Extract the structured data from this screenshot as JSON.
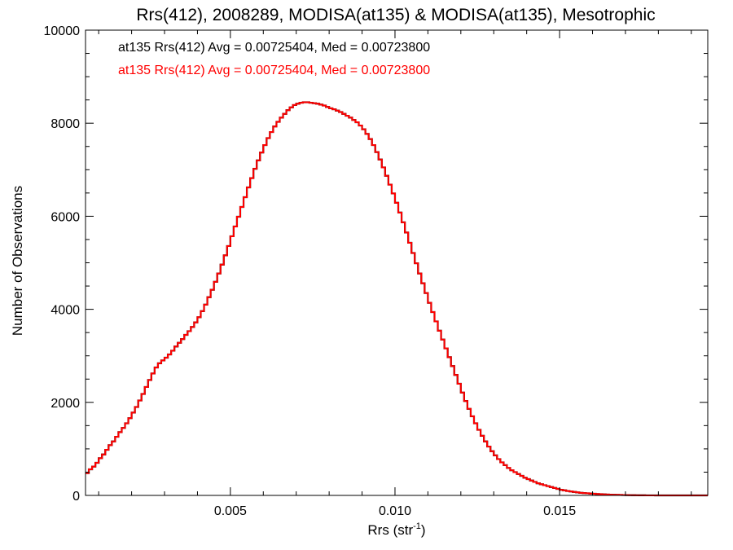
{
  "chart_data": {
    "type": "line",
    "title": "Rrs(412), 2008289, MODISA(at135) & MODISA(at135), Mesotrophic",
    "xlabel": "Rrs (str",
    "xlabel_sup": "-1",
    "xlabel_suffix": ")",
    "ylabel": "Number of Observations",
    "xlim": [
      0.0006,
      0.0195
    ],
    "ylim": [
      0,
      10000
    ],
    "grid": false,
    "x_ticks": [
      0.005,
      0.01,
      0.015
    ],
    "x_tick_labels": [
      "0.005",
      "0.010",
      "0.015"
    ],
    "y_ticks": [
      0,
      2000,
      4000,
      6000,
      8000,
      10000
    ],
    "y_tick_labels": [
      "0",
      "2000",
      "4000",
      "6000",
      "8000",
      "10000"
    ],
    "legend_position": "top-left",
    "bin_width": 0.0001,
    "x_start": 0.0006,
    "series": [
      {
        "name": "at135 Rrs(412) Avg = 0.00725404, Med = 0.00723800",
        "color": "#000000",
        "values": [
          480,
          560,
          620,
          700,
          800,
          880,
          980,
          1080,
          1160,
          1260,
          1360,
          1450,
          1550,
          1660,
          1780,
          1900,
          2040,
          2180,
          2330,
          2480,
          2620,
          2750,
          2840,
          2900,
          2960,
          3030,
          3110,
          3200,
          3280,
          3360,
          3450,
          3530,
          3620,
          3720,
          3830,
          3960,
          4100,
          4260,
          4420,
          4590,
          4770,
          4960,
          5160,
          5360,
          5570,
          5780,
          5990,
          6200,
          6410,
          6620,
          6820,
          7020,
          7200,
          7370,
          7530,
          7680,
          7810,
          7930,
          8030,
          8120,
          8200,
          8280,
          8340,
          8390,
          8420,
          8440,
          8450,
          8450,
          8440,
          8430,
          8420,
          8400,
          8380,
          8350,
          8320,
          8300,
          8270,
          8240,
          8200,
          8160,
          8120,
          8070,
          8020,
          7950,
          7870,
          7770,
          7660,
          7530,
          7380,
          7220,
          7050,
          6870,
          6680,
          6490,
          6290,
          6080,
          5870,
          5650,
          5430,
          5210,
          4990,
          4770,
          4560,
          4350,
          4140,
          3940,
          3740,
          3540,
          3350,
          3160,
          2970,
          2780,
          2590,
          2400,
          2210,
          2030,
          1860,
          1700,
          1550,
          1410,
          1280,
          1160,
          1050,
          950,
          860,
          780,
          710,
          650,
          590,
          540,
          500,
          460,
          420,
          380,
          350,
          320,
          290,
          260,
          240,
          220,
          200,
          180,
          160,
          140,
          120,
          110,
          95,
          85,
          75,
          65,
          55,
          50,
          45,
          40,
          35,
          30,
          26,
          22,
          19,
          16,
          14,
          12,
          10,
          8,
          6,
          5,
          4,
          3,
          2,
          2,
          1,
          1,
          1,
          0,
          0,
          0,
          0,
          0,
          0,
          0,
          0,
          0,
          0,
          0,
          0,
          0,
          0,
          0,
          0,
          0,
          0
        ]
      },
      {
        "name": "at135 Rrs(412) Avg = 0.00725404, Med = 0.00723800",
        "color": "#ff0000",
        "values": [
          480,
          560,
          620,
          700,
          800,
          880,
          980,
          1080,
          1160,
          1260,
          1360,
          1450,
          1550,
          1660,
          1780,
          1900,
          2040,
          2180,
          2330,
          2480,
          2620,
          2750,
          2840,
          2900,
          2960,
          3030,
          3110,
          3200,
          3280,
          3360,
          3450,
          3530,
          3620,
          3720,
          3830,
          3960,
          4100,
          4260,
          4420,
          4590,
          4770,
          4960,
          5160,
          5360,
          5570,
          5780,
          5990,
          6200,
          6410,
          6620,
          6820,
          7020,
          7200,
          7370,
          7530,
          7680,
          7810,
          7930,
          8030,
          8120,
          8200,
          8280,
          8340,
          8390,
          8420,
          8440,
          8450,
          8450,
          8440,
          8430,
          8420,
          8400,
          8380,
          8350,
          8320,
          8300,
          8270,
          8240,
          8200,
          8160,
          8120,
          8070,
          8020,
          7950,
          7870,
          7770,
          7660,
          7530,
          7380,
          7220,
          7050,
          6870,
          6680,
          6490,
          6290,
          6080,
          5870,
          5650,
          5430,
          5210,
          4990,
          4770,
          4560,
          4350,
          4140,
          3940,
          3740,
          3540,
          3350,
          3160,
          2970,
          2780,
          2590,
          2400,
          2210,
          2030,
          1860,
          1700,
          1550,
          1410,
          1280,
          1160,
          1050,
          950,
          860,
          780,
          710,
          650,
          590,
          540,
          500,
          460,
          420,
          380,
          350,
          320,
          290,
          260,
          240,
          220,
          200,
          180,
          160,
          140,
          120,
          110,
          95,
          85,
          75,
          65,
          55,
          50,
          45,
          40,
          35,
          30,
          26,
          22,
          19,
          16,
          14,
          12,
          10,
          8,
          6,
          5,
          4,
          3,
          2,
          2,
          1,
          1,
          1,
          0,
          0,
          0,
          0,
          0,
          0,
          0,
          0,
          0,
          0,
          0,
          0,
          0,
          0,
          0,
          0,
          0,
          0
        ]
      }
    ]
  }
}
